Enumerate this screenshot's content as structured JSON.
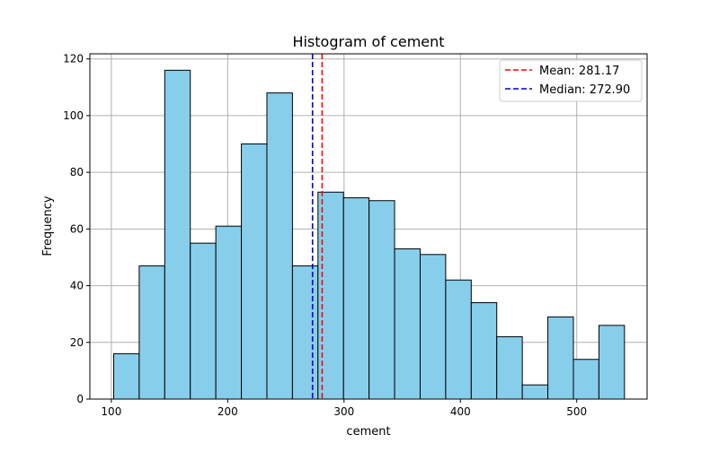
{
  "chart_data": {
    "type": "bar",
    "title": "Histogram of cement",
    "xlabel": "cement",
    "ylabel": "Frequency",
    "xlim": [
      81.55,
      560.45
    ],
    "ylim": [
      0,
      121.8
    ],
    "x_ticks": [
      100,
      200,
      300,
      400,
      500
    ],
    "y_ticks": [
      0,
      20,
      40,
      60,
      80,
      100,
      120
    ],
    "grid": true,
    "bin_edges": [
      102.0,
      123.95,
      145.9,
      167.85,
      189.8,
      211.75,
      233.7,
      255.65,
      277.6,
      299.55,
      321.5,
      343.45,
      365.4,
      387.35,
      409.3,
      431.25,
      453.2,
      475.15,
      497.1,
      519.05,
      541.0
    ],
    "values": [
      16,
      47,
      116,
      55,
      61,
      90,
      108,
      47,
      73,
      71,
      70,
      53,
      51,
      42,
      34,
      22,
      5,
      29,
      14,
      26
    ],
    "bar_color": "#87ceeb",
    "bar_edge_color": "#000000",
    "lines": [
      {
        "label": "Mean: 281.17",
        "x": 281.17,
        "color": "#ff0000",
        "style": "dashed"
      },
      {
        "label": "Median: 272.90",
        "x": 272.9,
        "color": "#0000cc",
        "style": "dashed"
      }
    ],
    "legend_position": "upper right"
  }
}
